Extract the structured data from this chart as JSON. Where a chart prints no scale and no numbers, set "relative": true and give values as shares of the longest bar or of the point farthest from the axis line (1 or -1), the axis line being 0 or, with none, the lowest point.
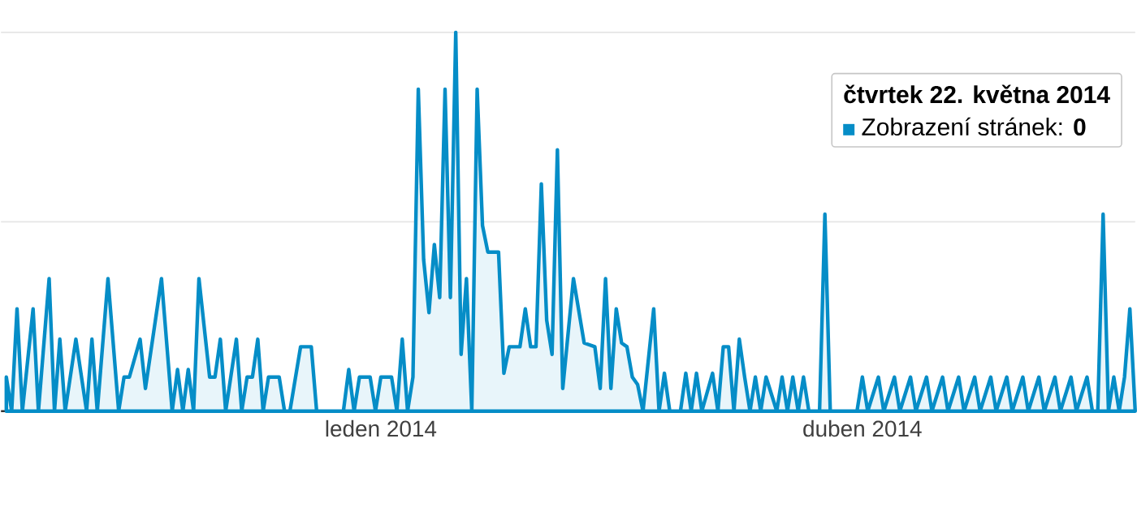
{
  "chart_data": {
    "type": "area",
    "relative": true,
    "color": "#058dc7",
    "ref_lines": [
      {
        "axis": "y",
        "value": 0.5,
        "color": "#e5e5e5"
      },
      {
        "axis": "y",
        "value": 1,
        "color": "#e5e5e5"
      }
    ],
    "xlim": [
      "2013-10-22",
      "2014-05-22"
    ],
    "xticks": [
      {
        "value": "2014-01-01",
        "label": "leden 2014"
      },
      {
        "value": "2014-04-01",
        "label": "duben 2014"
      }
    ],
    "x": [
      "2013-10-23",
      "2013-10-24",
      "2013-10-25",
      "2013-10-26",
      "2013-10-28",
      "2013-10-29",
      "2013-10-31",
      "2013-11-01",
      "2013-11-02",
      "2013-11-03",
      "2013-11-05",
      "2013-11-07",
      "2013-11-08",
      "2013-11-09",
      "2013-11-11",
      "2013-11-13",
      "2013-11-14",
      "2013-11-15",
      "2013-11-17",
      "2013-11-18",
      "2013-11-21",
      "2013-11-23",
      "2013-11-24",
      "2013-11-25",
      "2013-11-26",
      "2013-11-27",
      "2013-11-28",
      "2013-11-30",
      "2013-12-01",
      "2013-12-02",
      "2013-12-03",
      "2013-12-05",
      "2013-12-06",
      "2013-12-07",
      "2013-12-08",
      "2013-12-09",
      "2013-12-10",
      "2013-12-11",
      "2013-12-13",
      "2013-12-14",
      "2013-12-15",
      "2013-12-17",
      "2013-12-19",
      "2013-12-20",
      "2013-12-25",
      "2013-12-26",
      "2013-12-27",
      "2013-12-28",
      "2013-12-30",
      "2013-12-31",
      "2014-01-01",
      "2014-01-03",
      "2014-01-04",
      "2014-01-05",
      "2014-01-06",
      "2014-01-07",
      "2014-01-08",
      "2014-01-09",
      "2014-01-10",
      "2014-01-11",
      "2014-01-12",
      "2014-01-13",
      "2014-01-14",
      "2014-01-15",
      "2014-01-16",
      "2014-01-17",
      "2014-01-18",
      "2014-01-19",
      "2014-01-20",
      "2014-01-21",
      "2014-01-23",
      "2014-01-24",
      "2014-01-25",
      "2014-01-27",
      "2014-01-28",
      "2014-01-29",
      "2014-01-30",
      "2014-01-31",
      "2014-02-01",
      "2014-02-02",
      "2014-02-03",
      "2014-02-04",
      "2014-02-06",
      "2014-02-08",
      "2014-02-10",
      "2014-02-11",
      "2014-02-12",
      "2014-02-13",
      "2014-02-14",
      "2014-02-15",
      "2014-02-16",
      "2014-02-17",
      "2014-02-18",
      "2014-02-19",
      "2014-02-21",
      "2014-02-22",
      "2014-02-23",
      "2014-02-24",
      "2014-02-26",
      "2014-02-27",
      "2014-02-28",
      "2014-03-01",
      "2014-03-02",
      "2014-03-04",
      "2014-03-05",
      "2014-03-06",
      "2014-03-07",
      "2014-03-08",
      "2014-03-09",
      "2014-03-10",
      "2014-03-11",
      "2014-03-12",
      "2014-03-13",
      "2014-03-14",
      "2014-03-16",
      "2014-03-17",
      "2014-03-18",
      "2014-03-19",
      "2014-03-20",
      "2014-03-21",
      "2014-03-22",
      "2014-03-24",
      "2014-03-25",
      "2014-03-26",
      "2014-03-31",
      "2014-04-01",
      "2014-04-02",
      "2014-04-04",
      "2014-04-05",
      "2014-04-07",
      "2014-04-08",
      "2014-04-10",
      "2014-04-11",
      "2014-04-13",
      "2014-04-14",
      "2014-04-16",
      "2014-04-17",
      "2014-04-19",
      "2014-04-20",
      "2014-04-22",
      "2014-04-23",
      "2014-04-25",
      "2014-04-26",
      "2014-04-28",
      "2014-04-29",
      "2014-05-01",
      "2014-05-02",
      "2014-05-04",
      "2014-05-05",
      "2014-05-07",
      "2014-05-08",
      "2014-05-10",
      "2014-05-11",
      "2014-05-13",
      "2014-05-14",
      "2014-05-15",
      "2014-05-16",
      "2014-05-17",
      "2014-05-18",
      "2014-05-19",
      "2014-05-20",
      "2014-05-21",
      "2014-05-22"
    ],
    "values": [
      0.09,
      0,
      0.27,
      0,
      0.27,
      0,
      0.35,
      0,
      0.19,
      0,
      0.19,
      0,
      0.19,
      0,
      0.35,
      0,
      0.09,
      0.09,
      0.19,
      0.06,
      0.35,
      0,
      0.11,
      0,
      0.11,
      0,
      0.35,
      0.09,
      0.09,
      0.19,
      0,
      0.19,
      0,
      0.09,
      0.09,
      0.19,
      0,
      0.09,
      0.09,
      0,
      0,
      0.17,
      0.17,
      0,
      0,
      0.11,
      0,
      0.09,
      0.09,
      0,
      0.09,
      0.09,
      0,
      0.19,
      0,
      0.09,
      0.85,
      0.4,
      0.26,
      0.44,
      0.3,
      0.85,
      0.3,
      1,
      0.15,
      0.35,
      0,
      0.85,
      0.49,
      0.42,
      0.42,
      0.1,
      0.17,
      0.17,
      0.27,
      0.17,
      0.17,
      0.6,
      0.24,
      0.15,
      0.69,
      0.06,
      0.35,
      0.18,
      0.17,
      0.06,
      0.35,
      0.06,
      0.27,
      0.18,
      0.17,
      0.09,
      0.07,
      0,
      0.27,
      0,
      0.1,
      0,
      0,
      0.1,
      0,
      0.1,
      0,
      0.1,
      0,
      0.17,
      0.17,
      0,
      0.19,
      0.09,
      0,
      0.09,
      0,
      0.09,
      0,
      0.09,
      0,
      0.09,
      0,
      0.09,
      0,
      0,
      0.52,
      0,
      0,
      0.09,
      0,
      0.09,
      0,
      0.09,
      0,
      0.09,
      0,
      0.09,
      0,
      0.09,
      0,
      0.09,
      0,
      0.09,
      0,
      0.09,
      0,
      0.09,
      0,
      0.09,
      0,
      0.09,
      0,
      0.09,
      0,
      0.09,
      0,
      0.09,
      0,
      0,
      0.52,
      0,
      0.09,
      0,
      0.09,
      0.27,
      0
    ],
    "annotations": [
      "čtvrtek 22. května 2014",
      "Zobrazení stránek: **0**"
    ]
  }
}
